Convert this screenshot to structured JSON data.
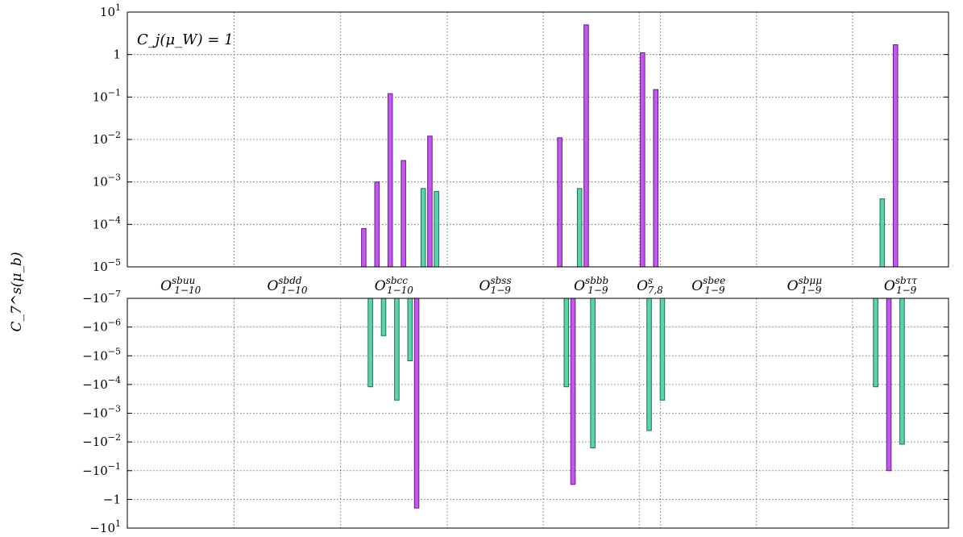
{
  "chart_data": {
    "type": "bar",
    "ylabel": "C_7^s(μ_b)",
    "annotation": "C_j(μ_W) = 1",
    "y_scale": "symlog",
    "top_panel": {
      "ylim": [
        1e-05,
        10
      ],
      "ticks": [
        {
          "base": "10",
          "exp": "1"
        },
        {
          "base": "1",
          "exp": ""
        },
        {
          "base": "10",
          "exp": "−1"
        },
        {
          "base": "10",
          "exp": "−2"
        },
        {
          "base": "10",
          "exp": "−3"
        },
        {
          "base": "10",
          "exp": "−4"
        },
        {
          "base": "10",
          "exp": "−5"
        }
      ]
    },
    "bottom_panel": {
      "ylim": [
        -1e-07,
        -10
      ],
      "ticks": [
        {
          "base": "−10",
          "exp": "−7"
        },
        {
          "base": "−10",
          "exp": "−6"
        },
        {
          "base": "−10",
          "exp": "−5"
        },
        {
          "base": "−10",
          "exp": "−4"
        },
        {
          "base": "−10",
          "exp": "−3"
        },
        {
          "base": "−10",
          "exp": "−2"
        },
        {
          "base": "−10",
          "exp": "−1"
        },
        {
          "base": "−1",
          "exp": ""
        },
        {
          "base": "−10",
          "exp": "1"
        }
      ]
    },
    "categories": [
      {
        "name": "O",
        "sup": "sbuu",
        "sub": "1−10",
        "n": 10
      },
      {
        "name": "O",
        "sup": "sbdd",
        "sub": "1−10",
        "n": 10
      },
      {
        "name": "O",
        "sup": "sbcc",
        "sub": "1−10",
        "n": 10
      },
      {
        "name": "O",
        "sup": "sbss",
        "sub": "1−9",
        "n": 9
      },
      {
        "name": "O",
        "sup": "sbbb",
        "sub": "1−9",
        "n": 9
      },
      {
        "name": "O",
        "sup": "s",
        "sub": "7,8",
        "n": 2
      },
      {
        "name": "O",
        "sup": "sbee",
        "sub": "1−9",
        "n": 9
      },
      {
        "name": "O",
        "sup": "sbμμ",
        "sub": "1−9",
        "n": 9
      },
      {
        "name": "O",
        "sup": "sbττ",
        "sub": "1−9",
        "n": 9
      }
    ],
    "bars": [
      {
        "cat": 2,
        "idx": 3,
        "value": 8e-05,
        "color": "purple"
      },
      {
        "cat": 2,
        "idx": 4,
        "value": -0.00012,
        "color": "green"
      },
      {
        "cat": 2,
        "idx": 5,
        "value": 0.001,
        "color": "purple"
      },
      {
        "cat": 2,
        "idx": 6,
        "value": -2e-06,
        "color": "green"
      },
      {
        "cat": 2,
        "idx": 7,
        "value": 0.12,
        "color": "purple"
      },
      {
        "cat": 2,
        "idx": 8,
        "value": -0.00035,
        "color": "green"
      },
      {
        "cat": 2,
        "idx": 9,
        "value": 0.0032,
        "color": "purple"
      },
      {
        "cat": 2,
        "idx": 10,
        "value": -1.5e-05,
        "color": "green"
      },
      {
        "cat": 2,
        "idx": 11,
        "value": -2.0,
        "color": "purple"
      },
      {
        "cat": 2,
        "idx": 12,
        "value": 0.0007,
        "color": "green"
      },
      {
        "cat": 2,
        "idx": 13,
        "value": 0.012,
        "color": "purple"
      },
      {
        "cat": 2,
        "idx": 14,
        "value": 0.0006,
        "color": "green"
      },
      {
        "cat": 4,
        "idx": 2,
        "value": 0.011,
        "color": "purple"
      },
      {
        "cat": 4,
        "idx": 3,
        "value": -0.00012,
        "color": "green"
      },
      {
        "cat": 4,
        "idx": 4,
        "value": -0.3,
        "color": "purple"
      },
      {
        "cat": 4,
        "idx": 5,
        "value": 0.0007,
        "color": "green"
      },
      {
        "cat": 4,
        "idx": 6,
        "value": 5.0,
        "color": "purple"
      },
      {
        "cat": 4,
        "idx": 7,
        "value": -0.016,
        "color": "green"
      },
      {
        "cat": 5,
        "idx": 0,
        "value": 1.1,
        "color": "purple"
      },
      {
        "cat": 5,
        "idx": 1,
        "value": -0.004,
        "color": "green"
      },
      {
        "cat": 5,
        "idx": 2,
        "value": 0.15,
        "color": "purple"
      },
      {
        "cat": 5,
        "idx": 3,
        "value": -0.00035,
        "color": "green"
      },
      {
        "cat": 8,
        "idx": 3,
        "value": -0.00012,
        "color": "green"
      },
      {
        "cat": 8,
        "idx": 4,
        "value": 0.0004,
        "color": "green"
      },
      {
        "cat": 8,
        "idx": 5,
        "value": -0.1,
        "color": "purple"
      },
      {
        "cat": 8,
        "idx": 6,
        "value": 1.7,
        "color": "purple"
      },
      {
        "cat": 8,
        "idx": 7,
        "value": -0.012,
        "color": "green"
      }
    ]
  }
}
